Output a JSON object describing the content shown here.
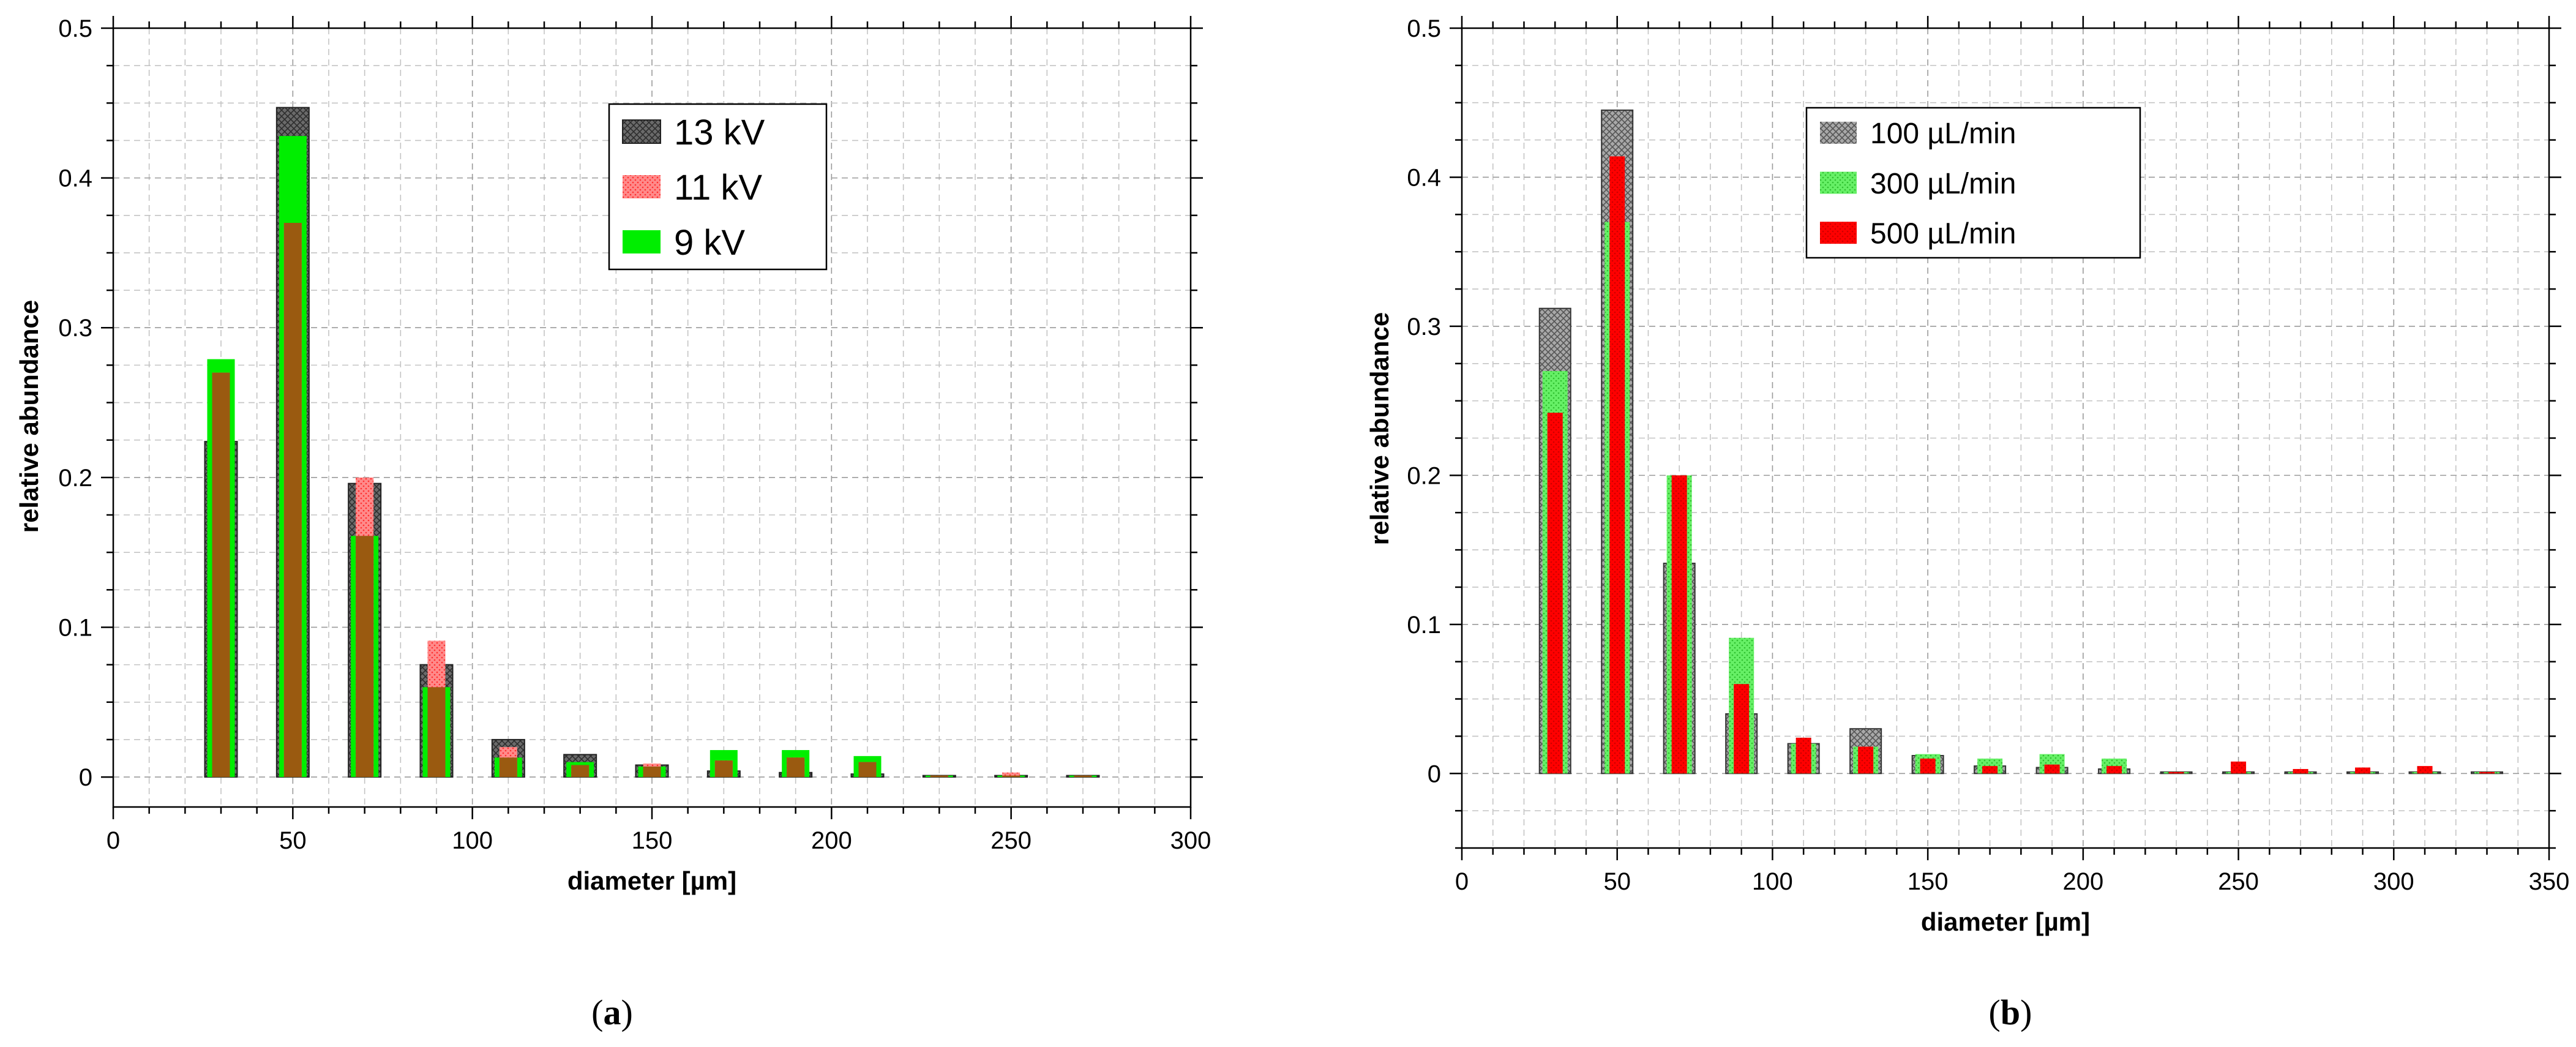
{
  "chart_data": [
    {
      "type": "bar",
      "panel_label": "a",
      "xlabel": "diameter [µm]",
      "ylabel": "relative abundance",
      "xlim": [
        0,
        300
      ],
      "ylim": [
        -0.02,
        0.5
      ],
      "xticks": [
        0,
        50,
        100,
        150,
        200,
        250,
        300
      ],
      "yticks": [
        0,
        0.1,
        0.2,
        0.3,
        0.4,
        0.5
      ],
      "xtick_labels": [
        "0",
        "50",
        "100",
        "150",
        "200",
        "250",
        "300"
      ],
      "ytick_labels": [
        "0",
        "0.1",
        "0.2",
        "0.3",
        "0.4",
        "0.5"
      ],
      "grid": true,
      "legend_position": "top-right",
      "bin_width": 20,
      "x": [
        30,
        50,
        70,
        90,
        110,
        130,
        150,
        170,
        190,
        210,
        230,
        250,
        270
      ],
      "series": [
        {
          "name": "13 kV",
          "color": "#5a5a5a",
          "pattern": "cross-hatch",
          "values": [
            0.224,
            0.447,
            0.196,
            0.075,
            0.025,
            0.015,
            0.008,
            0.004,
            0.003,
            0.002,
            0.001,
            0.001,
            0.001
          ]
        },
        {
          "name": "9 kV",
          "color": "#00ee00",
          "pattern": "solid",
          "values": [
            0.279,
            0.428,
            0.161,
            0.06,
            0.013,
            0.01,
            0.007,
            0.018,
            0.018,
            0.014,
            0.001,
            0.001,
            0.001
          ]
        },
        {
          "name": "11 kV",
          "color": "#ff5555",
          "pattern": "dotted",
          "values": [
            0.27,
            0.37,
            0.2,
            0.091,
            0.02,
            0.008,
            0.009,
            0.011,
            0.013,
            0.01,
            0.001,
            0.003,
            0.001
          ]
        }
      ]
    },
    {
      "type": "bar",
      "panel_label": "b",
      "xlabel": "diameter [µm]",
      "ylabel": "relative abundance",
      "xlim": [
        0,
        350
      ],
      "ylim": [
        -0.05,
        0.5
      ],
      "xticks": [
        0,
        50,
        100,
        150,
        200,
        250,
        300,
        350
      ],
      "yticks": [
        0,
        0.1,
        0.2,
        0.3,
        0.4,
        0.5
      ],
      "xtick_labels": [
        "0",
        "50",
        "100",
        "150",
        "200",
        "250",
        "300",
        "350"
      ],
      "ytick_labels": [
        "0",
        "0.1",
        "0.2",
        "0.3",
        "0.4",
        "0.5"
      ],
      "grid": true,
      "legend_position": "top-right",
      "bin_width": 20,
      "x": [
        30,
        50,
        70,
        90,
        110,
        130,
        150,
        170,
        190,
        210,
        230,
        250,
        270,
        290,
        310,
        330
      ],
      "series": [
        {
          "name": "100 µL/min",
          "color": "#888888",
          "pattern": "cross-hatch",
          "values": [
            0.312,
            0.445,
            0.141,
            0.04,
            0.02,
            0.03,
            0.012,
            0.005,
            0.004,
            0.003,
            0.001,
            0.001,
            0.001,
            0.001,
            0.001,
            0.001
          ]
        },
        {
          "name": "300 µL/min",
          "color": "#55ee55",
          "pattern": "dotted",
          "values": [
            0.27,
            0.37,
            0.2,
            0.091,
            0.02,
            0.018,
            0.013,
            0.01,
            0.013,
            0.01,
            0.001,
            0.001,
            0.001,
            0.001,
            0.001,
            0.001
          ]
        },
        {
          "name": "500 µL/min",
          "color": "#ff0000",
          "pattern": "dotted",
          "values": [
            0.242,
            0.414,
            0.2,
            0.06,
            0.024,
            0.018,
            0.01,
            0.005,
            0.006,
            0.005,
            0.001,
            0.008,
            0.003,
            0.004,
            0.005,
            0.001
          ]
        }
      ]
    }
  ]
}
